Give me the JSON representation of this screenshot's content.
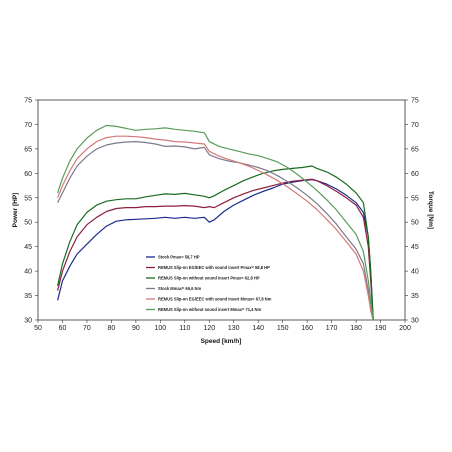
{
  "chart_data": {
    "type": "line",
    "xlabel": "Speed [km/h]",
    "ylabel_left": "Power [HP]",
    "ylabel_right": "Torque [Nm]",
    "xlim": [
      50,
      200
    ],
    "ylim_left": [
      30,
      75
    ],
    "ylim_right": [
      30,
      75
    ],
    "x_ticks": [
      "50",
      "60",
      "70",
      "80",
      "90",
      "100",
      "110",
      "120",
      "130",
      "140",
      "150",
      "160",
      "170",
      "180",
      "190",
      "200"
    ],
    "y_ticks_left": [
      "30",
      "35",
      "40",
      "45",
      "50",
      "55",
      "60",
      "65",
      "70",
      "75"
    ],
    "y_ticks_right": [
      "30",
      "35",
      "40",
      "45",
      "50",
      "55",
      "60",
      "65",
      "70",
      "75"
    ],
    "grid": false,
    "legend_position": "center",
    "series": [
      {
        "name": "Stock Pmax= 58,7 HP",
        "color": "#1a2a8c",
        "axis": "left",
        "points": [
          [
            58,
            34
          ],
          [
            60,
            38
          ],
          [
            63,
            41
          ],
          [
            66,
            43.5
          ],
          [
            70,
            45.5
          ],
          [
            74,
            47.5
          ],
          [
            78,
            49.2
          ],
          [
            82,
            50.2
          ],
          [
            86,
            50.5
          ],
          [
            90,
            50.6
          ],
          [
            94,
            50.7
          ],
          [
            98,
            50.8
          ],
          [
            102,
            51
          ],
          [
            106,
            50.8
          ],
          [
            110,
            51
          ],
          [
            114,
            50.8
          ],
          [
            118,
            51
          ],
          [
            120,
            50
          ],
          [
            122,
            50.5
          ],
          [
            126,
            52.2
          ],
          [
            130,
            53.5
          ],
          [
            134,
            54.5
          ],
          [
            138,
            55.5
          ],
          [
            142,
            56.3
          ],
          [
            146,
            57
          ],
          [
            150,
            57.8
          ],
          [
            154,
            58.2
          ],
          [
            158,
            58.5
          ],
          [
            162,
            58.7
          ],
          [
            164,
            58.5
          ],
          [
            168,
            57.8
          ],
          [
            172,
            56.8
          ],
          [
            176,
            55.5
          ],
          [
            180,
            54
          ],
          [
            183,
            52
          ],
          [
            185,
            47
          ],
          [
            186,
            40
          ],
          [
            187,
            30
          ]
        ]
      },
      {
        "name": "REMUS Slip-on EG/EEC with sound insert Pmax= 58,8 HP",
        "color": "#8e1f3c",
        "axis": "left",
        "points": [
          [
            58,
            36
          ],
          [
            60,
            40
          ],
          [
            63,
            44
          ],
          [
            66,
            47
          ],
          [
            70,
            49.5
          ],
          [
            74,
            51
          ],
          [
            78,
            52.2
          ],
          [
            82,
            52.8
          ],
          [
            86,
            53
          ],
          [
            90,
            53
          ],
          [
            94,
            53.2
          ],
          [
            98,
            53.2
          ],
          [
            102,
            53.3
          ],
          [
            106,
            53.3
          ],
          [
            110,
            53.4
          ],
          [
            114,
            53.3
          ],
          [
            118,
            53
          ],
          [
            120,
            53.2
          ],
          [
            122,
            53
          ],
          [
            126,
            54
          ],
          [
            130,
            55
          ],
          [
            134,
            55.8
          ],
          [
            138,
            56.5
          ],
          [
            142,
            57
          ],
          [
            146,
            57.5
          ],
          [
            150,
            58
          ],
          [
            154,
            58.4
          ],
          [
            158,
            58.6
          ],
          [
            162,
            58.8
          ],
          [
            164,
            58.5
          ],
          [
            168,
            57.5
          ],
          [
            172,
            56.3
          ],
          [
            176,
            55
          ],
          [
            180,
            53.5
          ],
          [
            183,
            51
          ],
          [
            185,
            45
          ],
          [
            186,
            38
          ],
          [
            187,
            30
          ]
        ]
      },
      {
        "name": "REMUS Slip-on without sound insert Pmax= 62,8 HP",
        "color": "#1b6b1f",
        "axis": "left",
        "points": [
          [
            58,
            37
          ],
          [
            60,
            41.5
          ],
          [
            63,
            46
          ],
          [
            66,
            49.5
          ],
          [
            70,
            52
          ],
          [
            74,
            53.5
          ],
          [
            78,
            54.3
          ],
          [
            82,
            54.6
          ],
          [
            86,
            54.8
          ],
          [
            90,
            54.8
          ],
          [
            94,
            55.2
          ],
          [
            98,
            55.5
          ],
          [
            102,
            55.8
          ],
          [
            106,
            55.7
          ],
          [
            110,
            55.9
          ],
          [
            114,
            55.6
          ],
          [
            118,
            55.3
          ],
          [
            120,
            55
          ],
          [
            122,
            55.4
          ],
          [
            126,
            56.5
          ],
          [
            130,
            57.5
          ],
          [
            134,
            58.5
          ],
          [
            138,
            59.3
          ],
          [
            142,
            60
          ],
          [
            146,
            60.5
          ],
          [
            150,
            60.8
          ],
          [
            154,
            61
          ],
          [
            158,
            61.2
          ],
          [
            162,
            61.5
          ],
          [
            164,
            61
          ],
          [
            168,
            60.3
          ],
          [
            172,
            59.2
          ],
          [
            176,
            57.8
          ],
          [
            180,
            56
          ],
          [
            183,
            54
          ],
          [
            185,
            47
          ],
          [
            186,
            40
          ],
          [
            187,
            30
          ]
        ]
      },
      {
        "name": "Stock Mmax= 66,6 Nm",
        "color": "#7a7a8c",
        "axis": "right",
        "points": [
          [
            58,
            54
          ],
          [
            60,
            56
          ],
          [
            63,
            59
          ],
          [
            66,
            61.5
          ],
          [
            70,
            63.5
          ],
          [
            74,
            65
          ],
          [
            78,
            65.8
          ],
          [
            82,
            66.2
          ],
          [
            86,
            66.4
          ],
          [
            90,
            66.5
          ],
          [
            94,
            66.3
          ],
          [
            98,
            66
          ],
          [
            102,
            65.5
          ],
          [
            106,
            65.6
          ],
          [
            110,
            65.4
          ],
          [
            114,
            65
          ],
          [
            118,
            65.3
          ],
          [
            120,
            63.8
          ],
          [
            124,
            63
          ],
          [
            128,
            62.5
          ],
          [
            132,
            62.2
          ],
          [
            136,
            61.7
          ],
          [
            140,
            61.2
          ],
          [
            144,
            60.5
          ],
          [
            148,
            59.5
          ],
          [
            152,
            58.3
          ],
          [
            156,
            57
          ],
          [
            160,
            55.5
          ],
          [
            164,
            53.8
          ],
          [
            168,
            51.8
          ],
          [
            172,
            49.6
          ],
          [
            176,
            47
          ],
          [
            180,
            44.5
          ],
          [
            183,
            41.5
          ],
          [
            185,
            36
          ],
          [
            186,
            32
          ],
          [
            187,
            30
          ]
        ]
      },
      {
        "name": "REMUS Slip-on EG/EEC with sound insert Mmax= 67,8 Nm",
        "color": "#d47a7a",
        "axis": "right",
        "points": [
          [
            58,
            55
          ],
          [
            60,
            57.5
          ],
          [
            63,
            60.5
          ],
          [
            66,
            63
          ],
          [
            70,
            65
          ],
          [
            74,
            66.5
          ],
          [
            78,
            67.3
          ],
          [
            82,
            67.6
          ],
          [
            86,
            67.6
          ],
          [
            90,
            67.5
          ],
          [
            94,
            67.3
          ],
          [
            98,
            67
          ],
          [
            102,
            66.8
          ],
          [
            106,
            66.5
          ],
          [
            110,
            66.4
          ],
          [
            114,
            66.2
          ],
          [
            118,
            66
          ],
          [
            120,
            64.5
          ],
          [
            124,
            63.5
          ],
          [
            128,
            62.8
          ],
          [
            132,
            62.2
          ],
          [
            136,
            61.5
          ],
          [
            140,
            60.6
          ],
          [
            144,
            59.6
          ],
          [
            148,
            58.5
          ],
          [
            152,
            57.2
          ],
          [
            156,
            55.8
          ],
          [
            160,
            54.3
          ],
          [
            164,
            52.6
          ],
          [
            168,
            50.6
          ],
          [
            172,
            48.5
          ],
          [
            176,
            46
          ],
          [
            180,
            43.5
          ],
          [
            183,
            40
          ],
          [
            185,
            35
          ],
          [
            186,
            32
          ],
          [
            187,
            30
          ]
        ]
      },
      {
        "name": "REMUS Slip-on without sound insert Mmax= 71,4 Nm",
        "color": "#5a9c5a",
        "axis": "right",
        "points": [
          [
            58,
            56
          ],
          [
            60,
            59
          ],
          [
            63,
            62.5
          ],
          [
            66,
            65
          ],
          [
            70,
            67.2
          ],
          [
            74,
            68.8
          ],
          [
            78,
            69.8
          ],
          [
            82,
            69.6
          ],
          [
            86,
            69.2
          ],
          [
            90,
            68.8
          ],
          [
            94,
            69
          ],
          [
            98,
            69.1
          ],
          [
            102,
            69.3
          ],
          [
            106,
            69
          ],
          [
            110,
            68.8
          ],
          [
            114,
            68.6
          ],
          [
            118,
            68.3
          ],
          [
            120,
            66.5
          ],
          [
            124,
            65.5
          ],
          [
            128,
            65
          ],
          [
            132,
            64.5
          ],
          [
            136,
            64
          ],
          [
            140,
            63.6
          ],
          [
            144,
            63
          ],
          [
            148,
            62.3
          ],
          [
            152,
            61.2
          ],
          [
            156,
            59.8
          ],
          [
            160,
            58.2
          ],
          [
            164,
            56.5
          ],
          [
            168,
            54.6
          ],
          [
            172,
            52.5
          ],
          [
            176,
            50
          ],
          [
            180,
            47.5
          ],
          [
            183,
            44
          ],
          [
            185,
            38
          ],
          [
            186,
            34
          ],
          [
            187,
            30
          ]
        ]
      }
    ]
  }
}
